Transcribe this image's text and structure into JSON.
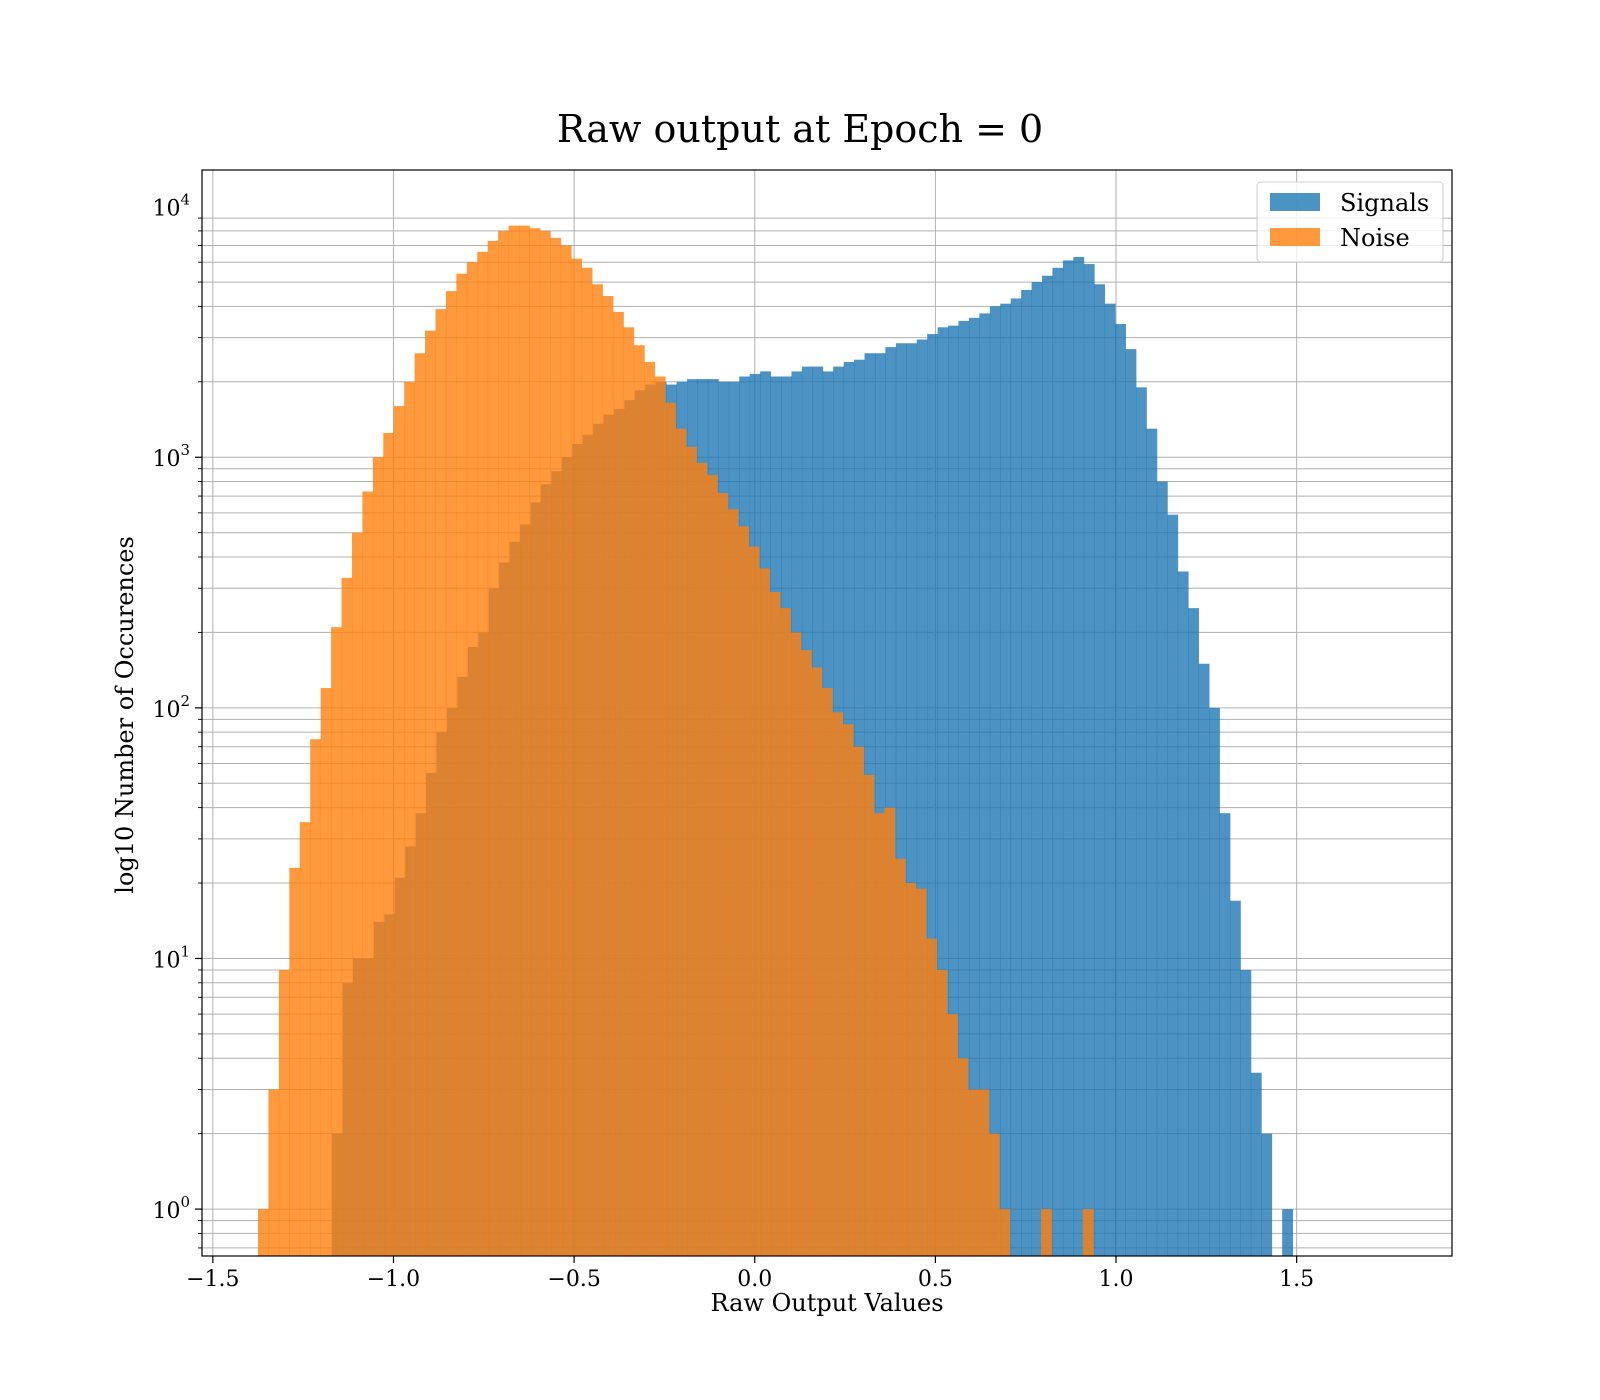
{
  "chart_data": {
    "type": "histogram",
    "title": "Raw output at Epoch = 0",
    "xlabel": "Raw Output Values",
    "ylabel": "log10 Number of Occurences",
    "xlim": [
      -1.53,
      1.93
    ],
    "ylim": [
      0.65,
      14000
    ],
    "yscale": "log",
    "grid": true,
    "legend_position": "top-right",
    "bin_width": 0.0289,
    "xticks": [
      -1.5,
      -1.0,
      -0.5,
      0.0,
      0.5,
      1.0,
      1.5
    ],
    "xtick_labels": [
      "−1.5",
      "−1.0",
      "−0.5",
      "0.0",
      "0.5",
      "1.0",
      "1.5"
    ],
    "yticks": [
      {
        "value": 1,
        "base": "10",
        "exp": "0"
      },
      {
        "value": 10,
        "base": "10",
        "exp": "1"
      },
      {
        "value": 100,
        "base": "10",
        "exp": "2"
      },
      {
        "value": 1000,
        "base": "10",
        "exp": "3"
      },
      {
        "value": 10000,
        "base": "10",
        "exp": "4"
      }
    ],
    "series": [
      {
        "name": "Signals",
        "color": "#1f77b4",
        "opacity": 0.8,
        "start": -1.17,
        "values": [
          2,
          8,
          10,
          10,
          14,
          15,
          21,
          28,
          38,
          55,
          80,
          100,
          133,
          175,
          200,
          300,
          380,
          460,
          540,
          660,
          780,
          880,
          1000,
          1130,
          1230,
          1360,
          1480,
          1560,
          1690,
          1850,
          1950,
          2000,
          1950,
          2000,
          2050,
          2050,
          2050,
          2000,
          2000,
          2100,
          2150,
          2200,
          2100,
          2100,
          2200,
          2300,
          2300,
          2200,
          2300,
          2400,
          2450,
          2600,
          2600,
          2750,
          2850,
          2850,
          2950,
          3100,
          3300,
          3350,
          3500,
          3600,
          3750,
          4000,
          4100,
          4300,
          4650,
          5000,
          5300,
          5700,
          6100,
          6300,
          5900,
          4900,
          4100,
          3400,
          2700,
          1900,
          1300,
          800,
          590,
          350,
          250,
          150,
          100,
          38,
          17,
          9,
          3.5,
          2,
          0,
          1
        ]
      },
      {
        "name": "Noise",
        "color": "#ff7f0e",
        "opacity": 0.8,
        "start": -1.375,
        "values": [
          1,
          3,
          9,
          23,
          35,
          75,
          120,
          210,
          330,
          500,
          730,
          1000,
          1250,
          1600,
          2000,
          2600,
          3200,
          3900,
          4600,
          5400,
          6000,
          6600,
          7300,
          8000,
          8400,
          8400,
          8200,
          8000,
          7500,
          7000,
          6200,
          5700,
          4900,
          4400,
          3800,
          3300,
          2800,
          2400,
          2100,
          1650,
          1300,
          1100,
          950,
          850,
          720,
          620,
          530,
          440,
          360,
          290,
          250,
          200,
          170,
          145,
          120,
          96,
          86,
          70,
          54,
          38,
          40,
          25,
          20,
          19,
          12,
          9,
          6,
          4,
          3,
          3,
          2,
          1,
          0,
          0,
          0,
          1,
          0,
          0,
          0,
          1
        ]
      }
    ]
  }
}
